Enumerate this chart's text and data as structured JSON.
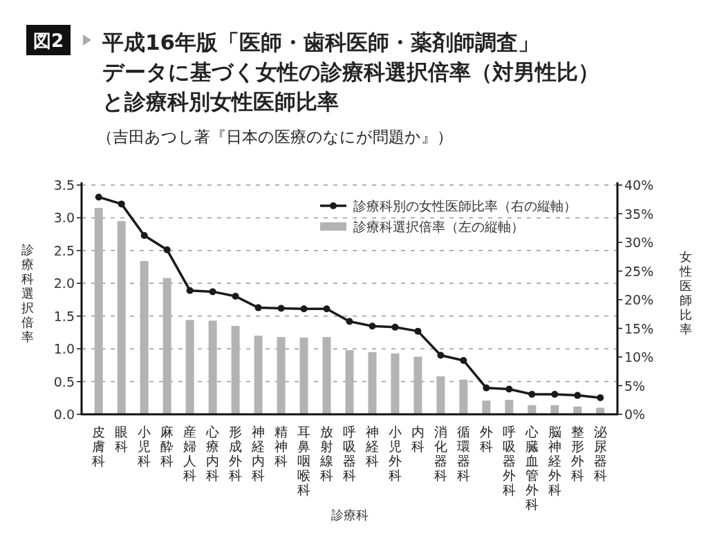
{
  "chart_data": {
    "type": "bar",
    "title": "平成16年版「医師・歯科医師・薬剤師調査」データに基づく女性の診療科選択倍率（対男性比）と診療科別女性医師比率",
    "subtitle": "（吉田あつし著『日本の医療のなにが問題か』）",
    "annotations": [
      "図2"
    ],
    "xlabel": "診療科",
    "ylabel": "診療科選択倍率",
    "y2label": "女性医師比率",
    "categories": [
      "皮膚科",
      "眼科",
      "小児科",
      "麻酔科",
      "産婦人科",
      "心療内科",
      "形成外科",
      "神経内科",
      "精神科",
      "耳鼻咽喉科",
      "放射線科",
      "呼吸器科",
      "神経科",
      "小児外科",
      "内科",
      "消化器科",
      "循環器科",
      "外科",
      "呼吸器外科",
      "心臓血管外科",
      "脳神経外科",
      "整形外科",
      "泌尿器科"
    ],
    "series": [
      {
        "name": "診療科別の女性医師比率（右の縦軸）",
        "type": "line",
        "axis": "y2",
        "color": "#1a1a1a",
        "marker": "circle",
        "values": [
          37.9,
          36.7,
          31.2,
          28.7,
          21.6,
          21.4,
          20.6,
          18.6,
          18.5,
          18.4,
          18.4,
          16.2,
          15.4,
          15.2,
          14.5,
          10.3,
          9.4,
          4.6,
          4.4,
          3.5,
          3.5,
          3.3,
          2.9
        ]
      },
      {
        "name": "診療科選択倍率（左の縦軸）",
        "color": "#b3b3b3",
        "values": [
          3.15,
          2.95,
          2.34,
          2.08,
          1.44,
          1.43,
          1.35,
          1.2,
          1.18,
          1.17,
          1.18,
          0.98,
          0.95,
          0.93,
          0.88,
          0.58,
          0.53,
          0.21,
          0.22,
          0.14,
          0.14,
          0.12,
          0.1
        ]
      }
    ],
    "ylim": [
      0,
      3.5
    ],
    "yticks": [
      {
        "value": 0,
        "label": "0.0"
      },
      {
        "value": 0.5,
        "label": "0.5"
      },
      {
        "value": 1,
        "label": "1.0"
      },
      {
        "value": 1.5,
        "label": "1.5"
      },
      {
        "value": 2,
        "label": "2.0"
      },
      {
        "value": 2.5,
        "label": "2.5"
      },
      {
        "value": 3,
        "label": "3.0"
      },
      {
        "value": 3.5,
        "label": "3.5"
      }
    ],
    "y2lim": [
      0,
      40
    ],
    "y2ticks": [
      {
        "value": 0,
        "label": "0%"
      },
      {
        "value": 5,
        "label": "5%"
      },
      {
        "value": 10,
        "label": "10%"
      },
      {
        "value": 15,
        "label": "15%"
      },
      {
        "value": 20,
        "label": "20%"
      },
      {
        "value": 25,
        "label": "25%"
      },
      {
        "value": 30,
        "label": "30%"
      },
      {
        "value": 35,
        "label": "35%"
      },
      {
        "value": 40,
        "label": "40%"
      }
    ],
    "grid": "y",
    "legend": "top right"
  }
}
